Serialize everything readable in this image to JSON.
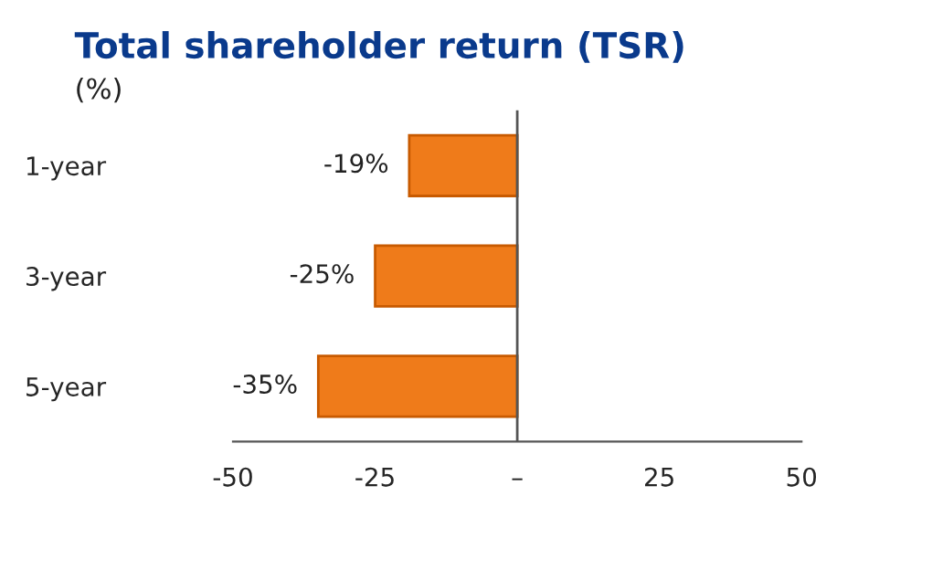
{
  "chart_data": {
    "type": "bar",
    "orientation": "horizontal",
    "title": "Total shareholder return (TSR)",
    "subtitle": "(%)",
    "categories": [
      "1-year",
      "3-year",
      "5-year"
    ],
    "series": [
      {
        "color": "#ef7b1a",
        "values": [
          -19,
          -25,
          -35
        ],
        "value_labels": [
          "-19%",
          "-25%",
          "-35%"
        ]
      }
    ],
    "xlim": [
      -50,
      50
    ],
    "xticks": [
      -50,
      -25,
      {
        "value": 0,
        "label": "–"
      },
      25,
      50
    ],
    "grid": false,
    "ref_lines": [
      {
        "axis": "x",
        "value": 0,
        "color": "#555555"
      }
    ]
  }
}
